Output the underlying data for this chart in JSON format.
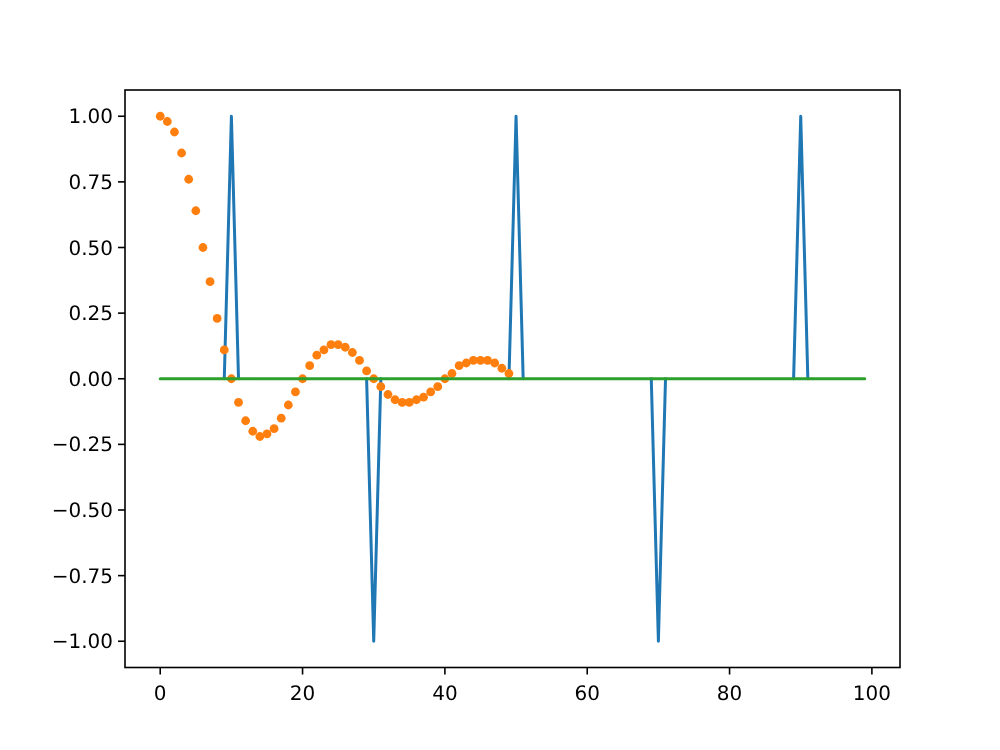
{
  "chart_data": {
    "type": "line",
    "x": [
      0,
      1,
      2,
      3,
      4,
      5,
      6,
      7,
      8,
      9,
      10,
      11,
      12,
      13,
      14,
      15,
      16,
      17,
      18,
      19,
      20,
      21,
      22,
      23,
      24,
      25,
      26,
      27,
      28,
      29,
      30,
      31,
      32,
      33,
      34,
      35,
      36,
      37,
      38,
      39,
      40,
      41,
      42,
      43,
      44,
      45,
      46,
      47,
      48,
      49,
      50,
      51,
      52,
      53,
      54,
      55,
      56,
      57,
      58,
      59,
      60,
      61,
      62,
      63,
      64,
      65,
      66,
      67,
      68,
      69,
      70,
      71,
      72,
      73,
      74,
      75,
      76,
      77,
      78,
      79,
      80,
      81,
      82,
      83,
      84,
      85,
      86,
      87,
      88,
      89,
      90,
      91,
      92,
      93,
      94,
      95,
      96,
      97,
      98,
      99
    ],
    "series": [
      {
        "color": "#1f77b4",
        "values": [
          null,
          null,
          null,
          null,
          null,
          null,
          null,
          null,
          null,
          0,
          1,
          0,
          null,
          null,
          null,
          null,
          null,
          null,
          null,
          null,
          null,
          null,
          null,
          null,
          null,
          null,
          null,
          null,
          null,
          0,
          -1,
          0,
          null,
          null,
          null,
          null,
          null,
          null,
          null,
          null,
          null,
          null,
          null,
          null,
          null,
          null,
          null,
          null,
          null,
          0,
          1,
          0,
          null,
          null,
          null,
          null,
          null,
          null,
          null,
          null,
          null,
          null,
          null,
          null,
          null,
          null,
          null,
          null,
          null,
          0,
          -1,
          0,
          null,
          null,
          null,
          null,
          null,
          null,
          null,
          null,
          null,
          null,
          null,
          null,
          null,
          null,
          null,
          null,
          null,
          0,
          1,
          0,
          null,
          null,
          null,
          null,
          null,
          null,
          null,
          null
        ]
      },
      {
        "type": "scatter",
        "color": "#ff7f0e",
        "marker": "circle",
        "x": [
          0,
          1,
          2,
          3,
          4,
          5,
          6,
          7,
          8,
          9,
          10,
          11,
          12,
          13,
          14,
          15,
          16,
          17,
          18,
          19,
          20,
          21,
          22,
          23,
          24,
          25,
          26,
          27,
          28,
          29,
          30,
          31,
          32,
          33,
          34,
          35,
          36,
          37,
          38,
          39,
          40,
          41,
          42,
          43,
          44,
          45,
          46,
          47,
          48,
          49
        ],
        "values": [
          1,
          0.98,
          0.94,
          0.86,
          0.76,
          0.64,
          0.5,
          0.37,
          0.23,
          0.11,
          0,
          -0.09,
          -0.16,
          -0.2,
          -0.22,
          -0.21,
          -0.19,
          -0.15,
          -0.1,
          -0.05,
          0,
          0.05,
          0.09,
          0.11,
          0.13,
          0.13,
          0.12,
          0.1,
          0.07,
          0.03,
          0,
          -0.03,
          -0.06,
          -0.08,
          -0.09,
          -0.09,
          -0.08,
          -0.07,
          -0.05,
          -0.03,
          0,
          0.02,
          0.05,
          0.06,
          0.07,
          0.07,
          0.07,
          0.06,
          0.04,
          0.02
        ]
      },
      {
        "color": "#2ca02c",
        "values": [
          0,
          0,
          0,
          0,
          0,
          0,
          0,
          0,
          0,
          0,
          0,
          0,
          0,
          0,
          0,
          0,
          0,
          0,
          0,
          0,
          0,
          0,
          0,
          0,
          0,
          0,
          0,
          0,
          0,
          0,
          0,
          0,
          0,
          0,
          0,
          0,
          0,
          0,
          0,
          0,
          0,
          0,
          0,
          0,
          0,
          0,
          0,
          0,
          0,
          0,
          0,
          0,
          0,
          0,
          0,
          0,
          0,
          0,
          0,
          0,
          0,
          0,
          0,
          0,
          0,
          0,
          0,
          0,
          0,
          0,
          0,
          0,
          0,
          0,
          0,
          0,
          0,
          0,
          0,
          0,
          0,
          0,
          0,
          0,
          0,
          0,
          0,
          0,
          0,
          0,
          0,
          0,
          0,
          0,
          0,
          0,
          0,
          0,
          0,
          0
        ]
      }
    ],
    "xlim": [
      -4.95,
      103.95
    ],
    "xticks": [
      0,
      20,
      40,
      60,
      80,
      100
    ],
    "ylim": [
      -1.1,
      1.1
    ],
    "yticks": [
      {
        "value": -1,
        "label": "−1.00"
      },
      {
        "value": -0.75,
        "label": "−0.75"
      },
      {
        "value": -0.5,
        "label": "−0.50"
      },
      {
        "value": -0.25,
        "label": "−0.25"
      },
      {
        "value": 0,
        "label": "0.00"
      },
      {
        "value": 0.25,
        "label": "0.25"
      },
      {
        "value": 0.5,
        "label": "0.50"
      },
      {
        "value": 0.75,
        "label": "0.75"
      },
      {
        "value": 1,
        "label": "1.00"
      }
    ],
    "grid": false
  }
}
